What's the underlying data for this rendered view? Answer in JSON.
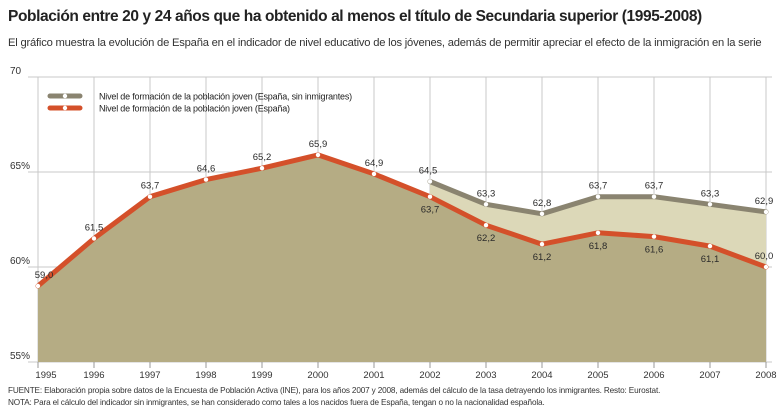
{
  "title": "Población entre 20 y 24 años que ha obtenido al menos el título de Secundaria superior (1995-2008)",
  "subtitle": "El gráfico muestra la evolución de España en el indicador de nivel educativo de los jóvenes, además de permitir apreciar el efecto de la inmigración en la serie",
  "chart_data": {
    "type": "area",
    "x": [
      "1995",
      "1996",
      "1997",
      "1998",
      "1999",
      "2000",
      "2001",
      "2002",
      "2003",
      "2004",
      "2005",
      "2006",
      "2007",
      "2008"
    ],
    "ylim": [
      55,
      70
    ],
    "yticks": [
      {
        "value": 70,
        "label": "70"
      },
      {
        "value": 65,
        "label": "65%"
      },
      {
        "value": 60,
        "label": "60%"
      },
      {
        "value": 55,
        "label": "55%"
      }
    ],
    "series": [
      {
        "name": "Nivel de formación de la población joven (España, sin inmigrantes)",
        "color": "#8a8470",
        "x": [
          "2002",
          "2003",
          "2004",
          "2005",
          "2006",
          "2007",
          "2008"
        ],
        "values": [
          64.5,
          63.3,
          62.8,
          63.7,
          63.7,
          63.3,
          62.9
        ],
        "labels": [
          "64,5",
          "63,3",
          "62,8",
          "63,7",
          "63,7",
          "63,3",
          "62,9"
        ]
      },
      {
        "name": "Nivel de formación de la población joven (España)",
        "color": "#d4502a",
        "x": [
          "1995",
          "1996",
          "1997",
          "1998",
          "1999",
          "2000",
          "2001",
          "2002",
          "2003",
          "2004",
          "2005",
          "2006",
          "2007",
          "2008"
        ],
        "values": [
          59.0,
          61.5,
          63.7,
          64.6,
          65.2,
          65.9,
          64.9,
          63.7,
          62.2,
          61.2,
          61.8,
          61.6,
          61.1,
          60.0
        ],
        "labels": [
          "59,0",
          "61,5",
          "63,7",
          "64,6",
          "65,2",
          "65,9",
          "64,9",
          "63,7",
          "62,2",
          "61,2",
          "61,8",
          "61,6",
          "61,1",
          "60,0"
        ]
      }
    ],
    "legend_position": "top-left",
    "grid": true,
    "colors": {
      "area_main": "#b5ac84",
      "area_gap": "#dcd8b8",
      "grid": "#c8c8c8",
      "marker_fill": "#ffffff"
    }
  },
  "footnotes": {
    "source": "FUENTE: Elaboración propia sobre datos de la Encuesta de Población Activa (INE), para los años 2007 y 2008, además del cálculo de la tasa detrayendo los inmigrantes. Resto: Eurostat.",
    "note": "NOTA: Para el cálculo del indicador sin inmigrantes, se han considerado como tales a los nacidos fuera de España, tengan o no la nacionalidad española."
  }
}
